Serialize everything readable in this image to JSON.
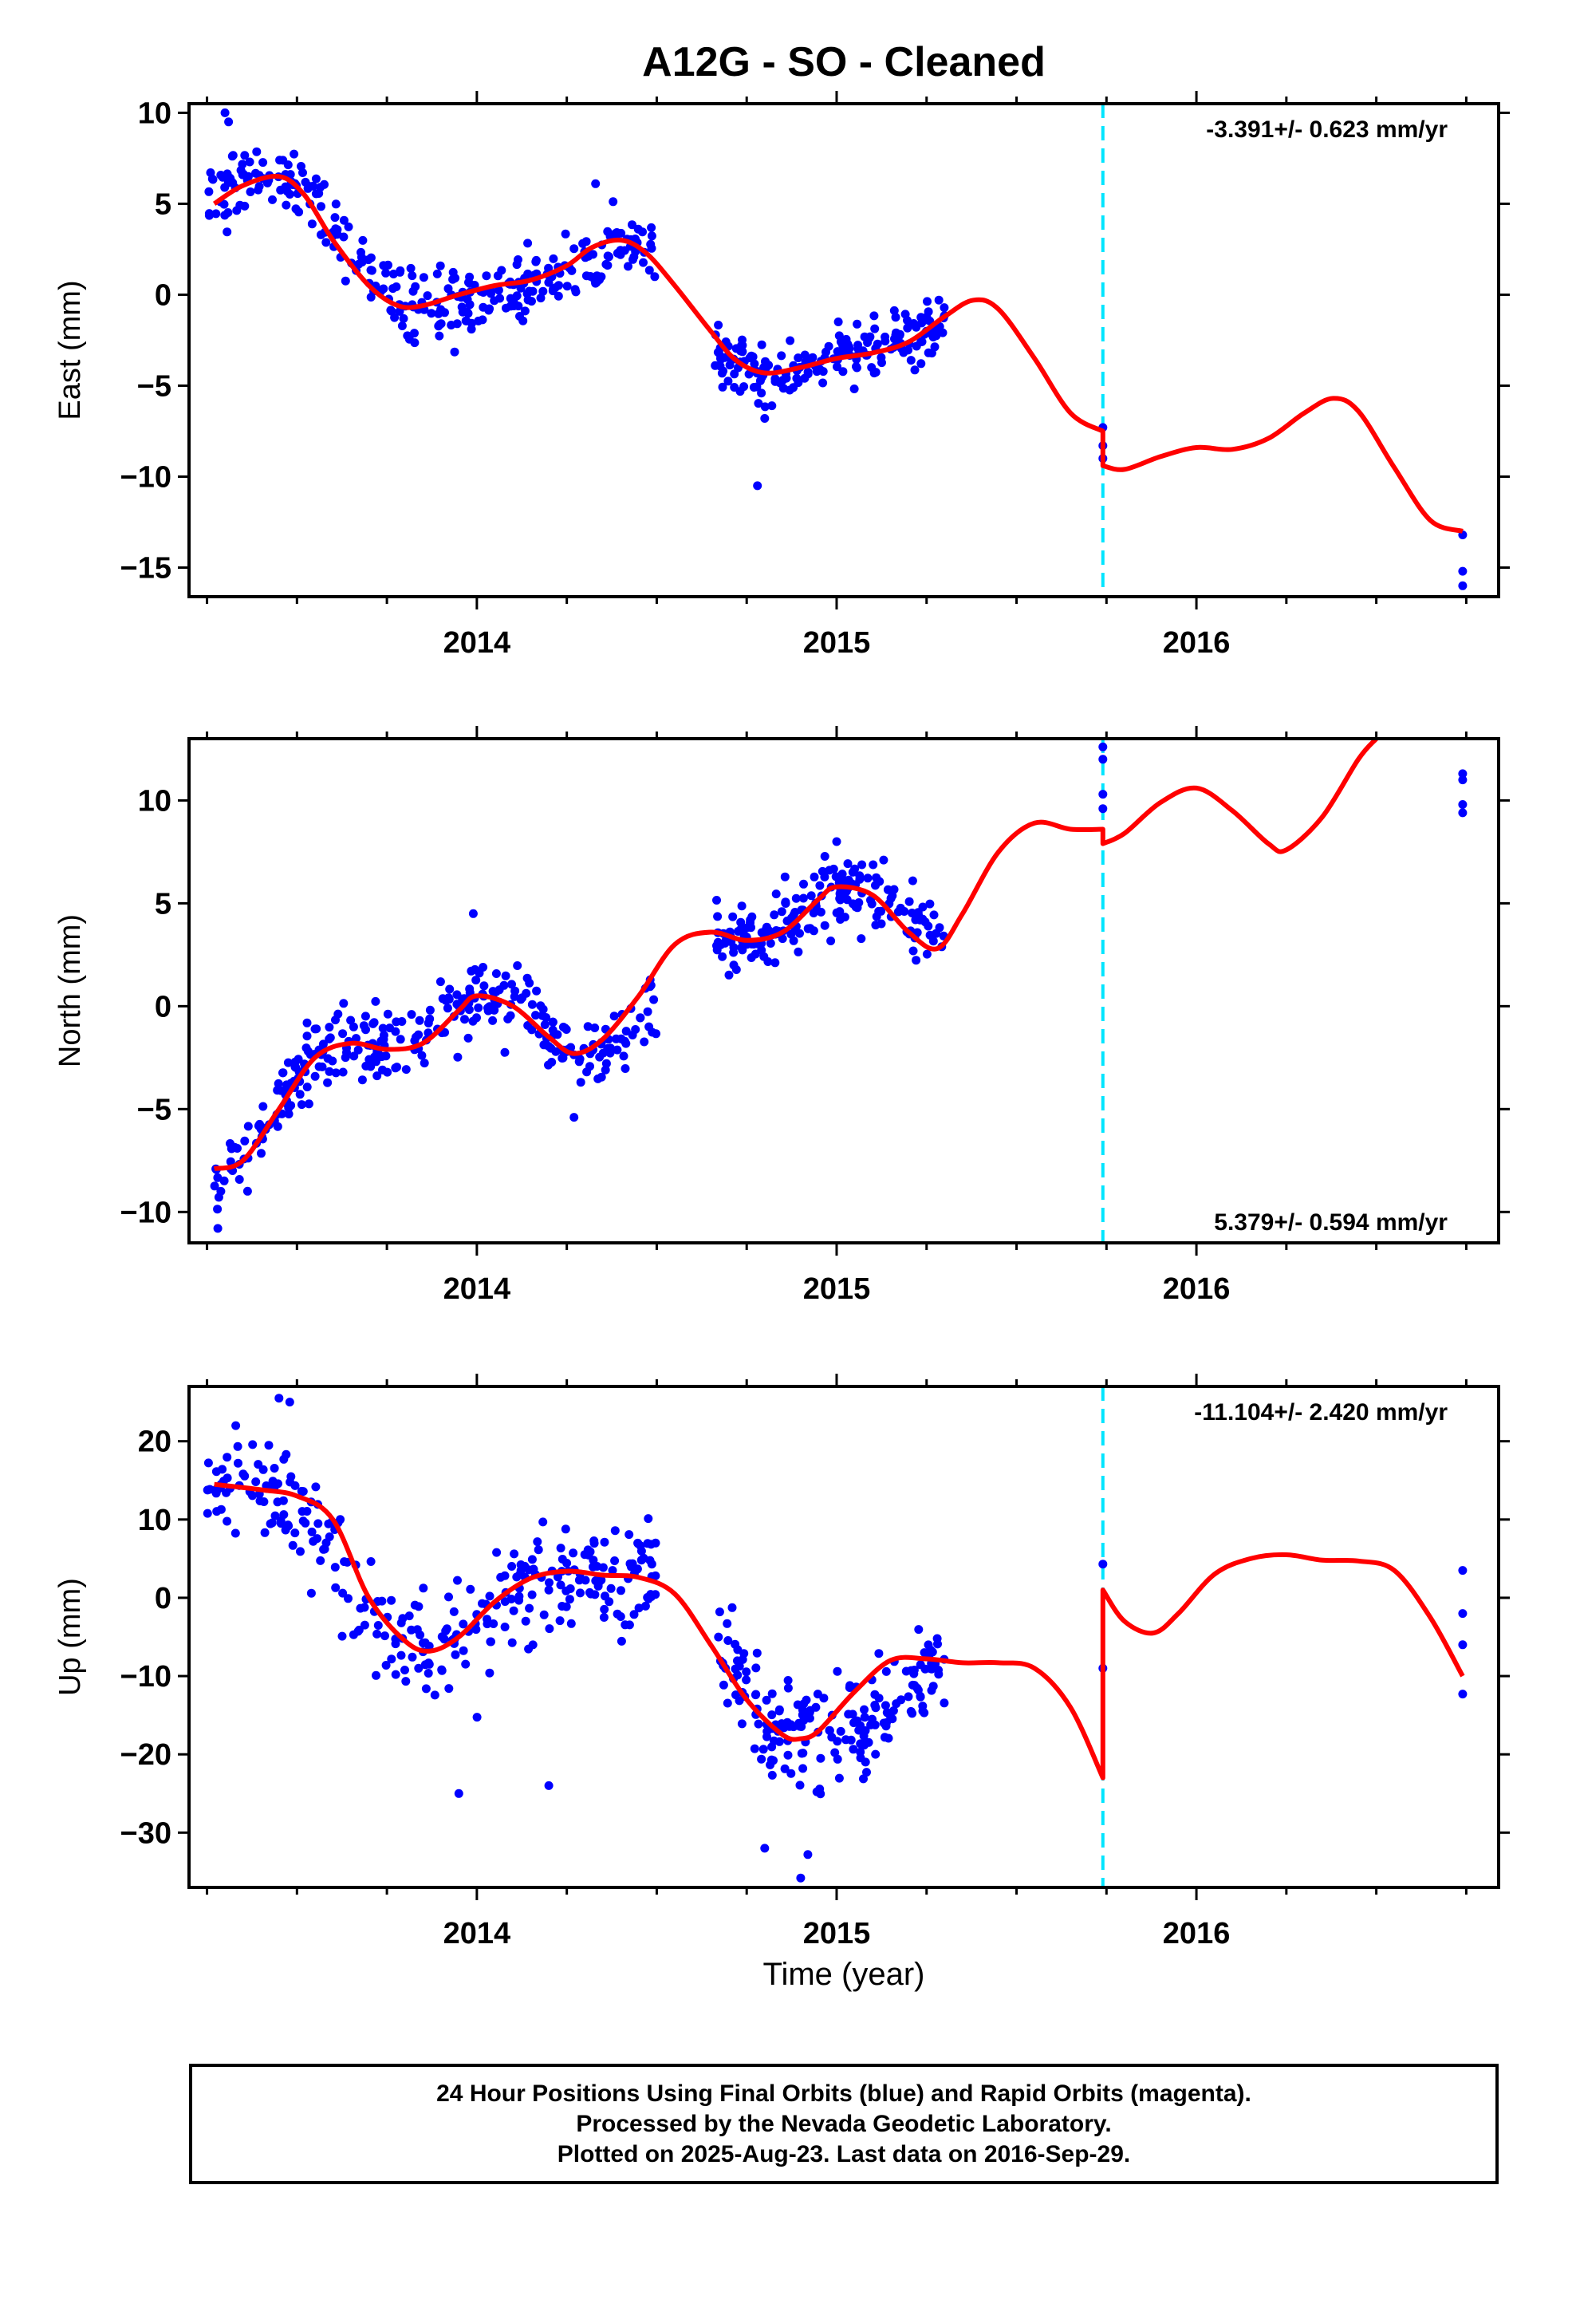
{
  "figure_title": "A12G  - SO - Cleaned",
  "x_axis_label": "Time (year)",
  "x_tick_labels": [
    "2014",
    "2015",
    "2016"
  ],
  "colors": {
    "data_points": "#0000ff",
    "model_line": "#ff0000",
    "break_line": "#00e5ff",
    "axes": "#000000"
  },
  "footer": {
    "line1": "24 Hour Positions Using Final Orbits (blue) and Rapid Orbits (magenta).",
    "line2": "Processed by the Nevada Geodetic Laboratory.",
    "line3": "Plotted on 2025-Aug-23. Last data on 2016-Sep-29."
  },
  "chart_data": [
    {
      "type": "scatter",
      "ylabel": "East (mm)",
      "rate_text": "-3.391+/- 0.623 mm/yr",
      "rate_position": "top-right",
      "xlim": [
        2013.2,
        2016.84
      ],
      "ylim": [
        -16.6,
        10.5
      ],
      "yticks": [
        10,
        5,
        0,
        -5,
        -10,
        -15
      ],
      "ytick_labels": [
        "10",
        "5",
        "0",
        "−5",
        "−10",
        "−15"
      ],
      "xticks": [
        2014,
        2015,
        2016
      ],
      "break_x": 2015.74,
      "model_series": {
        "name": "model",
        "segments": [
          {
            "x": [
              2013.27,
              2013.35,
              2013.45,
              2013.52,
              2013.6,
              2013.7,
              2013.78,
              2013.85,
              2013.95,
              2014.05,
              2014.15,
              2014.25,
              2014.32,
              2014.4,
              2014.47,
              2014.55,
              2014.65,
              2014.72,
              2014.8,
              2014.9,
              2015.0,
              2015.1,
              2015.2,
              2015.3,
              2015.38,
              2015.45,
              2015.55,
              2015.65,
              2015.74
            ],
            "y": [
              5.0,
              6.0,
              6.5,
              5.5,
              3.0,
              0.5,
              -0.6,
              -0.6,
              0.0,
              0.5,
              0.8,
              1.6,
              2.6,
              3.0,
              2.3,
              0.5,
              -2.0,
              -3.6,
              -4.3,
              -4.0,
              -3.5,
              -3.2,
              -2.6,
              -1.2,
              -0.3,
              -0.8,
              -3.5,
              -6.5,
              -7.5
            ]
          },
          {
            "x": [
              2015.74,
              2015.8,
              2015.9,
              2016.0,
              2016.1,
              2016.2,
              2016.3,
              2016.38,
              2016.45,
              2016.55,
              2016.65,
              2016.74
            ],
            "y": [
              -9.4,
              -9.6,
              -8.9,
              -8.4,
              -8.5,
              -7.9,
              -6.5,
              -5.7,
              -6.4,
              -9.5,
              -12.4,
              -13.0
            ]
          }
        ]
      },
      "observations": {
        "segments": [
          {
            "x0": 2013.25,
            "x1": 2014.5,
            "y": [
              5.0,
              6.0,
              6.5,
              5.5,
              3.0,
              0.5,
              -0.6,
              -0.6,
              0.0,
              0.5,
              0.8,
              1.6,
              2.6,
              3.0
            ],
            "spread": 1.6,
            "count": 310
          },
          {
            "x0": 2014.66,
            "x1": 2015.3,
            "y": [
              -3.6,
              -4.3,
              -4.0,
              -3.5,
              -3.2,
              -2.6,
              -1.5
            ],
            "spread": 1.4,
            "count": 190
          }
        ],
        "points": [
          {
            "x": 2013.3,
            "y": 10.0
          },
          {
            "x": 2013.31,
            "y": 9.5
          },
          {
            "x": 2014.33,
            "y": 6.1
          },
          {
            "x": 2014.78,
            "y": -10.5
          },
          {
            "x": 2014.8,
            "y": -6.8
          },
          {
            "x": 2014.82,
            "y": -6.1
          },
          {
            "x": 2015.74,
            "y": -7.3
          },
          {
            "x": 2015.74,
            "y": -8.3
          },
          {
            "x": 2015.74,
            "y": -9.0
          },
          {
            "x": 2016.74,
            "y": -13.2
          },
          {
            "x": 2016.74,
            "y": -15.2
          },
          {
            "x": 2016.74,
            "y": -16.0
          }
        ]
      }
    },
    {
      "type": "scatter",
      "ylabel": "North (mm)",
      "rate_text": "5.379+/- 0.594 mm/yr",
      "rate_position": "bottom-right",
      "xlim": [
        2013.2,
        2016.84
      ],
      "ylim": [
        -11.5,
        13.0
      ],
      "yticks": [
        10,
        5,
        0,
        -5,
        -10
      ],
      "ytick_labels": [
        "10",
        "5",
        "0",
        "−5",
        "−10"
      ],
      "xticks": [
        2014,
        2015,
        2016
      ],
      "break_x": 2015.74,
      "model_series": {
        "name": "model",
        "segments": [
          {
            "x": [
              2013.27,
              2013.35,
              2013.45,
              2013.55,
              2013.65,
              2013.75,
              2013.85,
              2013.95,
              2014.0,
              2014.1,
              2014.2,
              2014.27,
              2014.35,
              2014.45,
              2014.55,
              2014.65,
              2014.75,
              2014.85,
              2014.95,
              2015.0,
              2015.1,
              2015.2,
              2015.28,
              2015.35,
              2015.45,
              2015.55,
              2015.65,
              2015.74
            ],
            "y": [
              -7.9,
              -7.5,
              -5.0,
              -2.5,
              -1.8,
              -2.1,
              -1.8,
              -0.2,
              0.5,
              0.0,
              -1.5,
              -2.3,
              -1.6,
              0.5,
              3.0,
              3.6,
              3.2,
              3.6,
              5.2,
              5.8,
              5.4,
              3.6,
              2.8,
              4.5,
              7.5,
              8.9,
              8.6,
              8.6
            ]
          },
          {
            "x": [
              2015.74,
              2015.8,
              2015.9,
              2016.0,
              2016.1,
              2016.2,
              2016.25,
              2016.35,
              2016.45,
              2016.5
            ],
            "y": [
              7.9,
              8.4,
              9.9,
              10.6,
              9.5,
              7.9,
              7.6,
              9.2,
              12.0,
              13.0
            ]
          }
        ]
      },
      "observations": {
        "segments": [
          {
            "x0": 2013.25,
            "x1": 2014.5,
            "y": [
              -8.5,
              -7.5,
              -5.0,
              -2.5,
              -1.8,
              -2.1,
              -1.8,
              -0.2,
              0.5,
              0.0,
              -1.5,
              -2.3,
              -1.6,
              0.5
            ],
            "spread": 1.4,
            "count": 310
          },
          {
            "x0": 2014.66,
            "x1": 2015.3,
            "y": [
              3.2,
              3.4,
              4.2,
              5.2,
              5.8,
              4.6,
              3.4
            ],
            "spread": 1.4,
            "count": 190
          }
        ],
        "points": [
          {
            "x": 2013.28,
            "y": -10.8
          },
          {
            "x": 2013.99,
            "y": 4.5
          },
          {
            "x": 2014.27,
            "y": -5.4
          },
          {
            "x": 2015.0,
            "y": 8.0
          },
          {
            "x": 2015.74,
            "y": 12.6
          },
          {
            "x": 2015.74,
            "y": 12.0
          },
          {
            "x": 2015.74,
            "y": 10.3
          },
          {
            "x": 2015.74,
            "y": 9.6
          },
          {
            "x": 2016.74,
            "y": 11.3
          },
          {
            "x": 2016.74,
            "y": 11.0
          },
          {
            "x": 2016.74,
            "y": 9.8
          },
          {
            "x": 2016.74,
            "y": 9.4
          }
        ]
      }
    },
    {
      "type": "scatter",
      "ylabel": "Up (mm)",
      "rate_text": "-11.104+/- 2.420 mm/yr",
      "rate_position": "top-right",
      "xlim": [
        2013.2,
        2016.84
      ],
      "ylim": [
        -37.0,
        27.0
      ],
      "yticks": [
        20,
        10,
        0,
        -10,
        -20,
        -30
      ],
      "ytick_labels": [
        "20",
        "10",
        "0",
        "−10",
        "−20",
        "−30"
      ],
      "xticks": [
        2014,
        2015,
        2016
      ],
      "break_x": 2015.74,
      "model_series": {
        "name": "model",
        "segments": [
          {
            "x": [
              2013.27,
              2013.4,
              2013.5,
              2013.6,
              2013.7,
              2013.8,
              2013.87,
              2013.95,
              2014.05,
              2014.15,
              2014.25,
              2014.35,
              2014.45,
              2014.55,
              2014.65,
              2014.75,
              2014.85,
              2014.9,
              2014.95,
              2015.05,
              2015.15,
              2015.25,
              2015.35,
              2015.45,
              2015.55,
              2015.65,
              2015.74
            ],
            "y": [
              14.5,
              13.8,
              13.0,
              10.0,
              0.0,
              -5.5,
              -6.8,
              -5.0,
              -0.5,
              2.5,
              3.4,
              2.9,
              2.6,
              0.5,
              -6.0,
              -13.0,
              -17.5,
              -18.0,
              -17.0,
              -12.0,
              -8.0,
              -7.8,
              -8.3,
              -8.3,
              -9.0,
              -14.0,
              -23.0
            ]
          },
          {
            "x": [
              2015.74,
              2015.8,
              2015.88,
              2015.95,
              2016.05,
              2016.15,
              2016.25,
              2016.35,
              2016.45,
              2016.55,
              2016.65,
              2016.74
            ],
            "y": [
              1.0,
              -3.0,
              -4.5,
              -2.0,
              3.0,
              5.0,
              5.5,
              4.8,
              4.7,
              3.5,
              -2.5,
              -10.0
            ]
          }
        ]
      },
      "observations": {
        "segments": [
          {
            "x0": 2013.25,
            "x1": 2014.5,
            "y": [
              14.0,
              13.8,
              13.0,
              10.0,
              0.0,
              -5.5,
              -6.8,
              -5.0,
              -0.5,
              2.5,
              3.4,
              2.9,
              2.6
            ],
            "spread": 5.5,
            "count": 300
          },
          {
            "x0": 2014.66,
            "x1": 2015.3,
            "y": [
              -6.0,
              -13.0,
              -17.5,
              -18.0,
              -17.0,
              -12.0,
              -8.0
            ],
            "spread": 5.0,
            "count": 190
          }
        ],
        "points": [
          {
            "x": 2013.33,
            "y": 22.0
          },
          {
            "x": 2013.45,
            "y": 25.5
          },
          {
            "x": 2013.48,
            "y": 25.0
          },
          {
            "x": 2013.95,
            "y": -25.0
          },
          {
            "x": 2014.2,
            "y": -24.0
          },
          {
            "x": 2014.8,
            "y": -32.0
          },
          {
            "x": 2014.9,
            "y": -35.8
          },
          {
            "x": 2014.92,
            "y": -32.8
          },
          {
            "x": 2015.74,
            "y": 4.3
          },
          {
            "x": 2015.74,
            "y": -9.0
          },
          {
            "x": 2016.74,
            "y": 3.5
          },
          {
            "x": 2016.74,
            "y": -2.0
          },
          {
            "x": 2016.74,
            "y": -6.0
          },
          {
            "x": 2016.74,
            "y": -12.3
          }
        ]
      }
    }
  ]
}
